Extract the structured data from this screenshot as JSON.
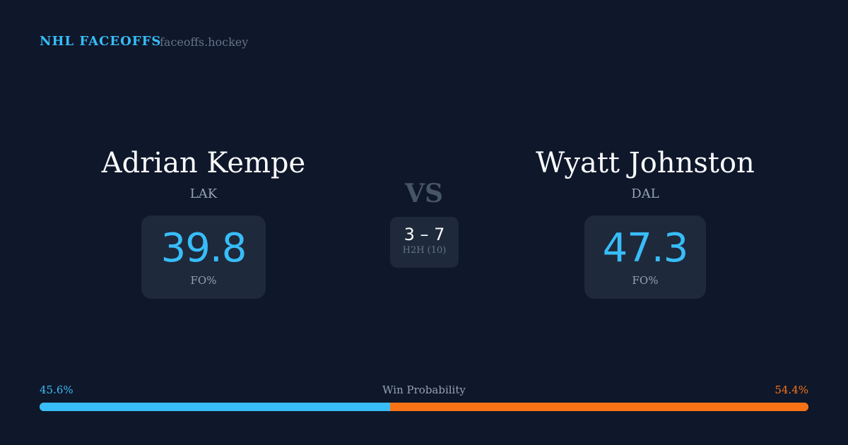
{
  "header": {
    "brand": "NHL FACEOFFS",
    "site": "faceoffs.hockey"
  },
  "left": {
    "name": "Adrian Kempe",
    "team": "LAK",
    "fo_pct": "39.8",
    "fo_label": "FO%"
  },
  "right": {
    "name": "Wyatt Johnston",
    "team": "DAL",
    "fo_pct": "47.3",
    "fo_label": "FO%"
  },
  "center": {
    "vs": "VS",
    "h2h_score": "3 – 7",
    "h2h_label": "H2H (10)"
  },
  "win_probability": {
    "title": "Win Probability",
    "left_label": "45.6%",
    "right_label": "54.4%",
    "left_value": 45.6,
    "right_value": 54.4,
    "left_color": "#38bdf8",
    "right_color": "#f97316"
  }
}
